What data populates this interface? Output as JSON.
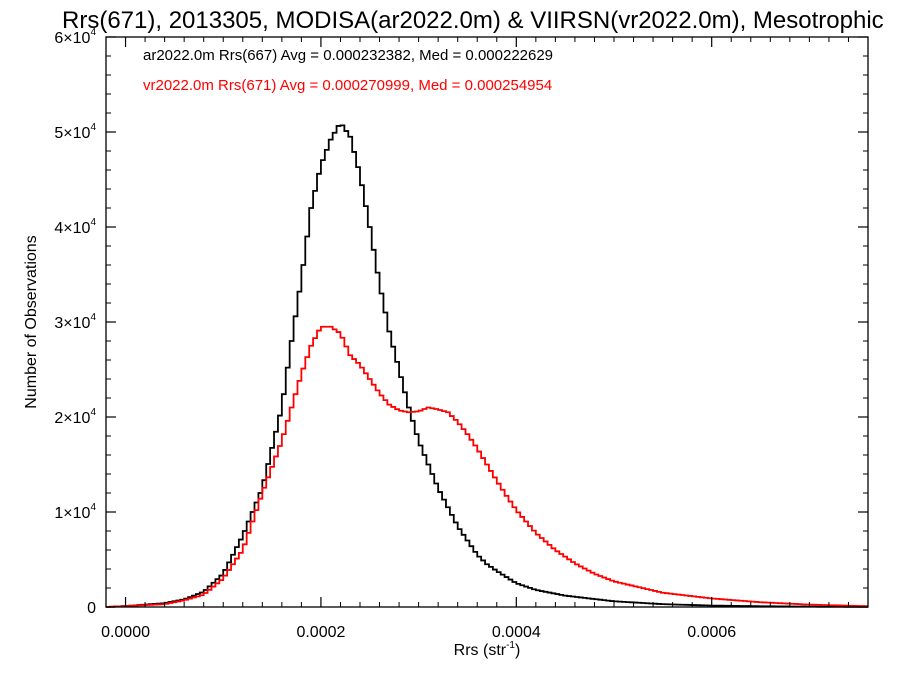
{
  "chart_data": {
    "type": "line",
    "title": "Rrs(671), 2013305, MODISA(ar2022.0m) & VIIRSN(vr2022.0m), Mesotrophic",
    "xlabel": "Rrs (str",
    "xlabel_sup": "-1",
    "xlabel_suffix": ")",
    "ylabel": "Number of Observations",
    "xlim": [
      -2e-05,
      0.00076
    ],
    "ylim": [
      0,
      60000
    ],
    "grid": false,
    "legend_position": "top-left",
    "x_ticks": [
      {
        "value": 0.0,
        "label": "0.0000"
      },
      {
        "value": 0.0002,
        "label": "0.0002"
      },
      {
        "value": 0.0004,
        "label": "0.0004"
      },
      {
        "value": 0.0006,
        "label": "0.0006"
      }
    ],
    "y_ticks": [
      {
        "value": 0,
        "label": "0",
        "sup": ""
      },
      {
        "value": 10000,
        "label": "1×10",
        "sup": "4"
      },
      {
        "value": 20000,
        "label": "2×10",
        "sup": "4"
      },
      {
        "value": 30000,
        "label": "3×10",
        "sup": "4"
      },
      {
        "value": 40000,
        "label": "4×10",
        "sup": "4"
      },
      {
        "value": 50000,
        "label": "5×10",
        "sup": "4"
      },
      {
        "value": 60000,
        "label": "6×10",
        "sup": "4"
      }
    ],
    "series": [
      {
        "name": "ar2022.0m Rrs(667) Avg = 0.000232382, Med = 0.000222629",
        "color": "#000000",
        "points": [
          [
            -2e-05,
            0
          ],
          [
            0.0,
            100
          ],
          [
            4e-05,
            400
          ],
          [
            6e-05,
            800
          ],
          [
            8e-05,
            1600
          ],
          [
            0.0001,
            3500
          ],
          [
            0.00012,
            7500
          ],
          [
            0.00014,
            12500
          ],
          [
            0.00016,
            21000
          ],
          [
            0.00017,
            28000
          ],
          [
            0.00018,
            34500
          ],
          [
            0.00019,
            42000
          ],
          [
            0.0002,
            46500
          ],
          [
            0.00021,
            49200
          ],
          [
            0.00022,
            51000
          ],
          [
            0.00023,
            49500
          ],
          [
            0.00024,
            45500
          ],
          [
            0.00025,
            40000
          ],
          [
            0.00026,
            34000
          ],
          [
            0.00027,
            29000
          ],
          [
            0.00028,
            25000
          ],
          [
            0.00029,
            21000
          ],
          [
            0.0003,
            17500
          ],
          [
            0.00031,
            15000
          ],
          [
            0.00032,
            12500
          ],
          [
            0.00033,
            10500
          ],
          [
            0.00034,
            8500
          ],
          [
            0.00035,
            7000
          ],
          [
            0.00036,
            5500
          ],
          [
            0.00037,
            4500
          ],
          [
            0.00038,
            3800
          ],
          [
            0.0004,
            2500
          ],
          [
            0.00042,
            1800
          ],
          [
            0.00045,
            1200
          ],
          [
            0.0005,
            600
          ],
          [
            0.00055,
            300
          ],
          [
            0.0006,
            150
          ],
          [
            0.00065,
            80
          ],
          [
            0.0007,
            40
          ],
          [
            0.00076,
            10
          ]
        ]
      },
      {
        "name": "vr2022.0m Rrs(671) Avg = 0.000270999, Med = 0.000254954",
        "color": "#ff0000",
        "points": [
          [
            -2e-05,
            0
          ],
          [
            0.0,
            100
          ],
          [
            4e-05,
            300
          ],
          [
            6e-05,
            700
          ],
          [
            8e-05,
            1300
          ],
          [
            0.0001,
            3000
          ],
          [
            0.00012,
            6000
          ],
          [
            0.00014,
            12000
          ],
          [
            0.00016,
            17500
          ],
          [
            0.00017,
            21000
          ],
          [
            0.00018,
            24500
          ],
          [
            0.00019,
            27500
          ],
          [
            0.0002,
            29500
          ],
          [
            0.00021,
            29500
          ],
          [
            0.00022,
            28800
          ],
          [
            0.00023,
            26500
          ],
          [
            0.00024,
            25500
          ],
          [
            0.00025,
            24000
          ],
          [
            0.00026,
            22500
          ],
          [
            0.00027,
            21300
          ],
          [
            0.00028,
            20700
          ],
          [
            0.00029,
            20500
          ],
          [
            0.0003,
            20600
          ],
          [
            0.00031,
            21000
          ],
          [
            0.00032,
            20800
          ],
          [
            0.00033,
            20500
          ],
          [
            0.00034,
            19500
          ],
          [
            0.00035,
            18200
          ],
          [
            0.00036,
            16700
          ],
          [
            0.00037,
            15000
          ],
          [
            0.00038,
            13300
          ],
          [
            0.00039,
            11700
          ],
          [
            0.0004,
            10200
          ],
          [
            0.00042,
            7800
          ],
          [
            0.00044,
            6000
          ],
          [
            0.00046,
            4600
          ],
          [
            0.00048,
            3500
          ],
          [
            0.0005,
            2700
          ],
          [
            0.00055,
            1500
          ],
          [
            0.0006,
            900
          ],
          [
            0.00065,
            500
          ],
          [
            0.0007,
            250
          ],
          [
            0.00076,
            80
          ]
        ]
      }
    ]
  }
}
